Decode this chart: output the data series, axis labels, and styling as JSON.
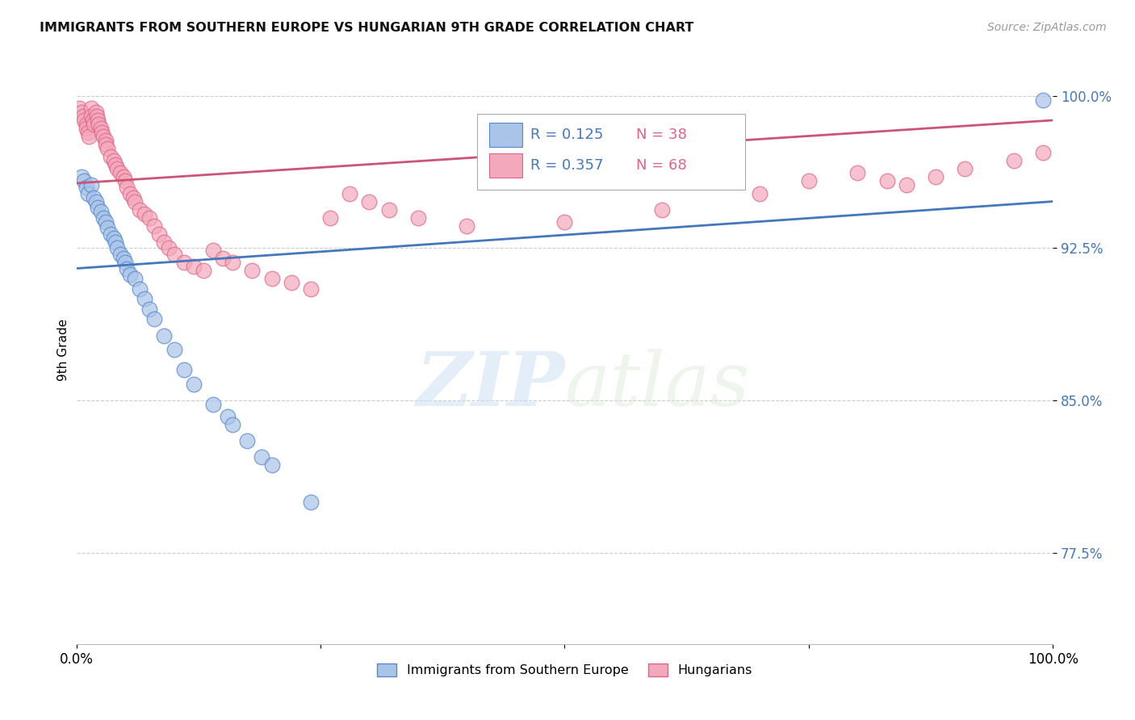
{
  "title": "IMMIGRANTS FROM SOUTHERN EUROPE VS HUNGARIAN 9TH GRADE CORRELATION CHART",
  "source": "Source: ZipAtlas.com",
  "ylabel": "9th Grade",
  "ytick_labels": [
    "77.5%",
    "85.0%",
    "92.5%",
    "100.0%"
  ],
  "ytick_values": [
    0.775,
    0.85,
    0.925,
    1.0
  ],
  "xlim": [
    0.0,
    1.0
  ],
  "ylim": [
    0.73,
    1.02
  ],
  "legend_r1": "0.125",
  "legend_n1": "38",
  "legend_r2": "0.357",
  "legend_n2": "68",
  "color_blue": "#aac4e8",
  "color_pink": "#f4a8bb",
  "edge_blue": "#5588cc",
  "edge_pink": "#dd6688",
  "line_blue": "#4477bb",
  "line_pink": "#cc5577",
  "blue_scatter_x": [
    0.005,
    0.008,
    0.01,
    0.012,
    0.015,
    0.018,
    0.02,
    0.022,
    0.025,
    0.028,
    0.03,
    0.032,
    0.035,
    0.038,
    0.04,
    0.042,
    0.045,
    0.048,
    0.05,
    0.052,
    0.055,
    0.06,
    0.065,
    0.07,
    0.075,
    0.08,
    0.09,
    0.1,
    0.11,
    0.12,
    0.14,
    0.155,
    0.16,
    0.175,
    0.19,
    0.2,
    0.24,
    0.99
  ],
  "blue_scatter_y": [
    0.96,
    0.958,
    0.955,
    0.952,
    0.956,
    0.95,
    0.948,
    0.945,
    0.943,
    0.94,
    0.938,
    0.935,
    0.932,
    0.93,
    0.928,
    0.925,
    0.922,
    0.92,
    0.918,
    0.915,
    0.912,
    0.91,
    0.905,
    0.9,
    0.895,
    0.89,
    0.882,
    0.875,
    0.865,
    0.858,
    0.848,
    0.842,
    0.838,
    0.83,
    0.822,
    0.818,
    0.8,
    0.998
  ],
  "pink_scatter_x": [
    0.003,
    0.005,
    0.007,
    0.008,
    0.01,
    0.01,
    0.012,
    0.013,
    0.015,
    0.015,
    0.017,
    0.018,
    0.02,
    0.021,
    0.022,
    0.023,
    0.025,
    0.026,
    0.028,
    0.03,
    0.03,
    0.032,
    0.035,
    0.038,
    0.04,
    0.042,
    0.045,
    0.048,
    0.05,
    0.052,
    0.055,
    0.058,
    0.06,
    0.065,
    0.07,
    0.075,
    0.08,
    0.085,
    0.09,
    0.095,
    0.1,
    0.11,
    0.12,
    0.13,
    0.14,
    0.15,
    0.16,
    0.18,
    0.2,
    0.22,
    0.24,
    0.26,
    0.28,
    0.3,
    0.32,
    0.35,
    0.4,
    0.5,
    0.6,
    0.7,
    0.75,
    0.8,
    0.83,
    0.85,
    0.88,
    0.91,
    0.96,
    0.99
  ],
  "pink_scatter_y": [
    0.994,
    0.992,
    0.99,
    0.988,
    0.986,
    0.984,
    0.982,
    0.98,
    0.994,
    0.99,
    0.988,
    0.986,
    0.992,
    0.99,
    0.988,
    0.986,
    0.984,
    0.982,
    0.98,
    0.978,
    0.976,
    0.974,
    0.97,
    0.968,
    0.966,
    0.964,
    0.962,
    0.96,
    0.958,
    0.955,
    0.952,
    0.95,
    0.948,
    0.944,
    0.942,
    0.94,
    0.936,
    0.932,
    0.928,
    0.925,
    0.922,
    0.918,
    0.916,
    0.914,
    0.924,
    0.92,
    0.918,
    0.914,
    0.91,
    0.908,
    0.905,
    0.94,
    0.952,
    0.948,
    0.944,
    0.94,
    0.936,
    0.938,
    0.944,
    0.952,
    0.958,
    0.962,
    0.958,
    0.956,
    0.96,
    0.964,
    0.968,
    0.972
  ],
  "watermark_zip": "ZIP",
  "watermark_atlas": "atlas",
  "background_color": "#ffffff",
  "grid_color": "#cccccc",
  "tick_color": "#4477bb"
}
